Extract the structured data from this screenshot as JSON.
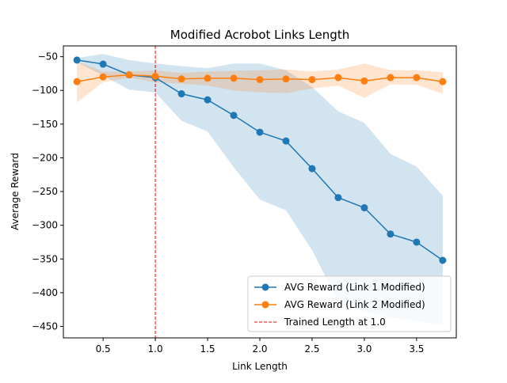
{
  "chart_data": {
    "type": "line",
    "title": "Modified Acrobot Links Length",
    "xlabel": "Link Length",
    "ylabel": "Average Reward",
    "xlim": [
      0.12,
      3.88
    ],
    "ylim": [
      -467,
      -34
    ],
    "xticks": [
      0.5,
      1.0,
      1.5,
      2.0,
      2.5,
      3.0,
      3.5
    ],
    "xtick_labels": [
      "0.5",
      "1.0",
      "1.5",
      "2.0",
      "2.5",
      "3.0",
      "3.5"
    ],
    "yticks": [
      -50,
      -100,
      -150,
      -200,
      -250,
      -300,
      -350,
      -400,
      -450
    ],
    "ytick_labels": [
      "−50",
      "−100",
      "−150",
      "−200",
      "−250",
      "−300",
      "−350",
      "−400",
      "−450"
    ],
    "x": [
      0.25,
      0.5,
      0.75,
      1.0,
      1.25,
      1.5,
      1.75,
      2.0,
      2.25,
      2.5,
      2.75,
      3.0,
      3.25,
      3.5,
      3.75
    ],
    "series": [
      {
        "name": "AVG Reward (Link 1 Modified)",
        "color": "#1f77b4",
        "values": [
          -55,
          -61,
          -77,
          -81,
          -105,
          -114,
          -137,
          -162,
          -175,
          -216,
          -259,
          -274,
          -313,
          -325,
          -352
        ],
        "band_low": [
          -58,
          -78,
          -99,
          -103,
          -145,
          -161,
          -214,
          -262,
          -278,
          -337,
          -413,
          -428,
          -437,
          -442,
          -448
        ],
        "band_high": [
          -52,
          -46,
          -55,
          -60,
          -64,
          -67,
          -60,
          -60,
          -70,
          -95,
          -131,
          -148,
          -194,
          -213,
          -256
        ]
      },
      {
        "name": "AVG Reward (Link 2 Modified)",
        "color": "#ff7f0e",
        "values": [
          -87,
          -80,
          -77,
          -79,
          -83,
          -82,
          -82,
          -84,
          -83,
          -84,
          -81,
          -86,
          -81,
          -81,
          -87
        ],
        "band_low": [
          -118,
          -88,
          -81,
          -88,
          -90,
          -93,
          -100,
          -103,
          -104,
          -97,
          -93,
          -111,
          -91,
          -92,
          -105
        ],
        "band_high": [
          -57,
          -72,
          -72,
          -70,
          -74,
          -72,
          -71,
          -70,
          -69,
          -72,
          -69,
          -60,
          -70,
          -70,
          -73
        ]
      }
    ],
    "reference_line": {
      "name": "Trained Length at 1.0",
      "x": 1.0,
      "color": "#ff0000",
      "style": "dashed"
    },
    "legend_position": "lower-right",
    "legend_entries": [
      "AVG Reward (Link 1 Modified)",
      "AVG Reward (Link 2 Modified)",
      "Trained Length at 1.0"
    ],
    "grid": false
  }
}
